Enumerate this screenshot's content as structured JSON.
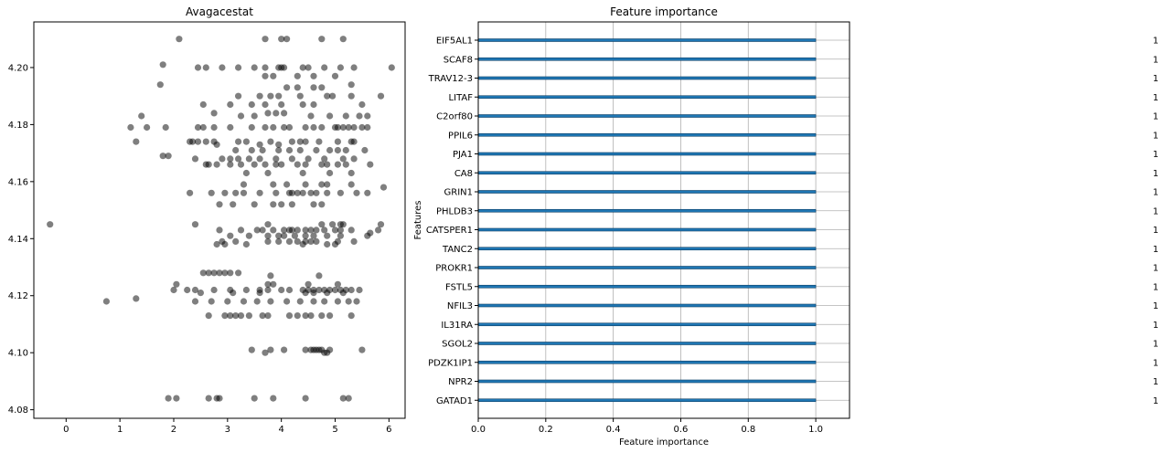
{
  "chart_data": [
    {
      "type": "scatter",
      "title": "Avagacestat",
      "xlabel": "",
      "ylabel": "",
      "xlim": [
        -0.6,
        6.3
      ],
      "ylim": [
        4.077,
        4.216
      ],
      "xticks": [
        "0",
        "1",
        "2",
        "3",
        "4",
        "5",
        "6"
      ],
      "yticks": [
        "4.08",
        "4.10",
        "4.12",
        "4.14",
        "4.16",
        "4.18",
        "4.20"
      ],
      "marker_color": "#000000",
      "marker_alpha": 0.5,
      "grid": false,
      "points": [
        [
          2.1,
          4.21
        ],
        [
          3.7,
          4.21
        ],
        [
          4.0,
          4.21
        ],
        [
          4.1,
          4.21
        ],
        [
          4.75,
          4.21
        ],
        [
          5.15,
          4.21
        ],
        [
          1.8,
          4.201
        ],
        [
          2.45,
          4.2
        ],
        [
          2.6,
          4.2
        ],
        [
          2.9,
          4.2
        ],
        [
          3.2,
          4.2
        ],
        [
          3.5,
          4.2
        ],
        [
          3.7,
          4.2
        ],
        [
          3.95,
          4.2
        ],
        [
          4.0,
          4.2
        ],
        [
          4.05,
          4.2
        ],
        [
          4.4,
          4.2
        ],
        [
          4.5,
          4.2
        ],
        [
          4.8,
          4.2
        ],
        [
          5.1,
          4.2
        ],
        [
          5.35,
          4.2
        ],
        [
          6.05,
          4.2
        ],
        [
          3.7,
          4.197
        ],
        [
          3.85,
          4.197
        ],
        [
          4.3,
          4.197
        ],
        [
          4.6,
          4.197
        ],
        [
          5.0,
          4.197
        ],
        [
          1.75,
          4.194
        ],
        [
          4.1,
          4.193
        ],
        [
          4.3,
          4.193
        ],
        [
          4.6,
          4.193
        ],
        [
          4.75,
          4.193
        ],
        [
          5.3,
          4.194
        ],
        [
          3.2,
          4.19
        ],
        [
          3.6,
          4.19
        ],
        [
          3.8,
          4.19
        ],
        [
          3.95,
          4.19
        ],
        [
          4.35,
          4.19
        ],
        [
          4.85,
          4.19
        ],
        [
          4.95,
          4.19
        ],
        [
          5.3,
          4.19
        ],
        [
          5.85,
          4.19
        ],
        [
          2.55,
          4.187
        ],
        [
          3.05,
          4.187
        ],
        [
          3.45,
          4.187
        ],
        [
          3.7,
          4.187
        ],
        [
          4.0,
          4.187
        ],
        [
          4.4,
          4.187
        ],
        [
          4.6,
          4.187
        ],
        [
          5.5,
          4.187
        ],
        [
          1.4,
          4.183
        ],
        [
          2.75,
          4.184
        ],
        [
          3.25,
          4.183
        ],
        [
          3.5,
          4.183
        ],
        [
          3.75,
          4.184
        ],
        [
          3.9,
          4.184
        ],
        [
          4.05,
          4.184
        ],
        [
          4.55,
          4.183
        ],
        [
          4.9,
          4.183
        ],
        [
          5.2,
          4.183
        ],
        [
          5.45,
          4.183
        ],
        [
          5.6,
          4.183
        ],
        [
          1.2,
          4.179
        ],
        [
          1.5,
          4.179
        ],
        [
          1.85,
          4.179
        ],
        [
          2.45,
          4.179
        ],
        [
          2.55,
          4.179
        ],
        [
          2.75,
          4.179
        ],
        [
          3.05,
          4.179
        ],
        [
          3.45,
          4.179
        ],
        [
          3.7,
          4.179
        ],
        [
          3.85,
          4.179
        ],
        [
          4.05,
          4.179
        ],
        [
          4.15,
          4.179
        ],
        [
          4.45,
          4.179
        ],
        [
          4.6,
          4.179
        ],
        [
          4.75,
          4.179
        ],
        [
          5.0,
          4.179
        ],
        [
          5.05,
          4.179
        ],
        [
          5.15,
          4.179
        ],
        [
          5.25,
          4.179
        ],
        [
          5.35,
          4.179
        ],
        [
          5.5,
          4.179
        ],
        [
          5.6,
          4.179
        ],
        [
          1.3,
          4.174
        ],
        [
          2.3,
          4.174
        ],
        [
          2.35,
          4.174
        ],
        [
          2.45,
          4.174
        ],
        [
          2.6,
          4.174
        ],
        [
          2.75,
          4.174
        ],
        [
          2.8,
          4.173
        ],
        [
          3.2,
          4.174
        ],
        [
          3.35,
          4.174
        ],
        [
          3.6,
          4.173
        ],
        [
          3.8,
          4.174
        ],
        [
          3.95,
          4.173
        ],
        [
          4.2,
          4.174
        ],
        [
          4.35,
          4.174
        ],
        [
          4.45,
          4.174
        ],
        [
          4.7,
          4.174
        ],
        [
          5.05,
          4.174
        ],
        [
          5.3,
          4.174
        ],
        [
          5.35,
          4.174
        ],
        [
          3.15,
          4.171
        ],
        [
          3.45,
          4.171
        ],
        [
          3.65,
          4.171
        ],
        [
          3.95,
          4.171
        ],
        [
          4.15,
          4.171
        ],
        [
          4.35,
          4.171
        ],
        [
          4.65,
          4.171
        ],
        [
          4.9,
          4.171
        ],
        [
          5.05,
          4.171
        ],
        [
          5.2,
          4.171
        ],
        [
          5.55,
          4.171
        ],
        [
          1.8,
          4.169
        ],
        [
          1.9,
          4.169
        ],
        [
          2.4,
          4.168
        ],
        [
          2.9,
          4.168
        ],
        [
          3.05,
          4.168
        ],
        [
          3.2,
          4.168
        ],
        [
          3.4,
          4.168
        ],
        [
          3.6,
          4.168
        ],
        [
          3.9,
          4.168
        ],
        [
          4.2,
          4.168
        ],
        [
          4.5,
          4.168
        ],
        [
          4.8,
          4.168
        ],
        [
          5.15,
          4.168
        ],
        [
          5.35,
          4.168
        ],
        [
          2.6,
          4.166
        ],
        [
          2.65,
          4.166
        ],
        [
          2.8,
          4.166
        ],
        [
          3.05,
          4.166
        ],
        [
          3.25,
          4.166
        ],
        [
          3.5,
          4.166
        ],
        [
          3.7,
          4.166
        ],
        [
          3.9,
          4.166
        ],
        [
          4.0,
          4.166
        ],
        [
          4.3,
          4.166
        ],
        [
          4.45,
          4.166
        ],
        [
          4.75,
          4.166
        ],
        [
          4.85,
          4.166
        ],
        [
          5.05,
          4.166
        ],
        [
          5.2,
          4.166
        ],
        [
          5.65,
          4.166
        ],
        [
          3.35,
          4.163
        ],
        [
          3.75,
          4.163
        ],
        [
          4.4,
          4.163
        ],
        [
          4.9,
          4.163
        ],
        [
          5.3,
          4.163
        ],
        [
          3.3,
          4.159
        ],
        [
          3.85,
          4.159
        ],
        [
          4.1,
          4.159
        ],
        [
          4.45,
          4.159
        ],
        [
          4.75,
          4.159
        ],
        [
          4.85,
          4.159
        ],
        [
          5.3,
          4.159
        ],
        [
          5.9,
          4.158
        ],
        [
          2.3,
          4.156
        ],
        [
          2.7,
          4.156
        ],
        [
          2.95,
          4.156
        ],
        [
          3.15,
          4.156
        ],
        [
          3.3,
          4.156
        ],
        [
          3.6,
          4.156
        ],
        [
          3.9,
          4.156
        ],
        [
          4.15,
          4.156
        ],
        [
          4.2,
          4.156
        ],
        [
          4.3,
          4.156
        ],
        [
          4.4,
          4.156
        ],
        [
          4.55,
          4.156
        ],
        [
          4.65,
          4.156
        ],
        [
          4.85,
          4.156
        ],
        [
          5.1,
          4.156
        ],
        [
          5.4,
          4.156
        ],
        [
          5.6,
          4.156
        ],
        [
          2.85,
          4.152
        ],
        [
          3.1,
          4.152
        ],
        [
          3.5,
          4.152
        ],
        [
          3.85,
          4.152
        ],
        [
          4.0,
          4.152
        ],
        [
          4.2,
          4.152
        ],
        [
          4.6,
          4.152
        ],
        [
          4.75,
          4.152
        ],
        [
          -0.3,
          4.145
        ],
        [
          2.4,
          4.145
        ],
        [
          3.75,
          4.145
        ],
        [
          4.75,
          4.145
        ],
        [
          4.95,
          4.145
        ],
        [
          5.1,
          4.145
        ],
        [
          5.15,
          4.145
        ],
        [
          5.85,
          4.145
        ],
        [
          2.85,
          4.143
        ],
        [
          3.25,
          4.143
        ],
        [
          3.55,
          4.143
        ],
        [
          3.65,
          4.143
        ],
        [
          3.85,
          4.143
        ],
        [
          4.05,
          4.143
        ],
        [
          4.15,
          4.143
        ],
        [
          4.2,
          4.143
        ],
        [
          4.3,
          4.143
        ],
        [
          4.45,
          4.143
        ],
        [
          4.55,
          4.143
        ],
        [
          4.65,
          4.143
        ],
        [
          4.8,
          4.143
        ],
        [
          5.0,
          4.143
        ],
        [
          5.1,
          4.143
        ],
        [
          5.3,
          4.143
        ],
        [
          5.8,
          4.143
        ],
        [
          3.05,
          4.141
        ],
        [
          3.4,
          4.141
        ],
        [
          3.75,
          4.141
        ],
        [
          3.95,
          4.141
        ],
        [
          4.05,
          4.141
        ],
        [
          4.25,
          4.141
        ],
        [
          4.45,
          4.141
        ],
        [
          4.6,
          4.141
        ],
        [
          4.85,
          4.141
        ],
        [
          5.1,
          4.141
        ],
        [
          5.6,
          4.141
        ],
        [
          5.65,
          4.142
        ],
        [
          2.9,
          4.139
        ],
        [
          3.15,
          4.139
        ],
        [
          3.75,
          4.139
        ],
        [
          3.95,
          4.139
        ],
        [
          4.15,
          4.139
        ],
        [
          4.3,
          4.139
        ],
        [
          4.45,
          4.139
        ],
        [
          4.55,
          4.139
        ],
        [
          4.65,
          4.139
        ],
        [
          5.05,
          4.139
        ],
        [
          5.35,
          4.139
        ],
        [
          2.8,
          4.138
        ],
        [
          2.95,
          4.138
        ],
        [
          3.35,
          4.138
        ],
        [
          4.4,
          4.138
        ],
        [
          4.85,
          4.138
        ],
        [
          5.0,
          4.138
        ],
        [
          2.65,
          4.128
        ],
        [
          2.75,
          4.128
        ],
        [
          2.85,
          4.128
        ],
        [
          2.95,
          4.128
        ],
        [
          3.05,
          4.128
        ],
        [
          3.2,
          4.128
        ],
        [
          2.55,
          4.128
        ],
        [
          3.8,
          4.127
        ],
        [
          4.7,
          4.127
        ],
        [
          2.05,
          4.124
        ],
        [
          3.75,
          4.124
        ],
        [
          3.85,
          4.124
        ],
        [
          4.5,
          4.124
        ],
        [
          5.05,
          4.124
        ],
        [
          2.0,
          4.122
        ],
        [
          2.4,
          4.122
        ],
        [
          2.75,
          4.122
        ],
        [
          3.05,
          4.122
        ],
        [
          3.35,
          4.122
        ],
        [
          3.6,
          4.122
        ],
        [
          3.75,
          4.122
        ],
        [
          4.0,
          4.122
        ],
        [
          4.15,
          4.122
        ],
        [
          4.4,
          4.122
        ],
        [
          4.5,
          4.122
        ],
        [
          4.6,
          4.122
        ],
        [
          4.7,
          4.122
        ],
        [
          4.8,
          4.122
        ],
        [
          4.9,
          4.122
        ],
        [
          5.0,
          4.122
        ],
        [
          5.1,
          4.122
        ],
        [
          5.2,
          4.122
        ],
        [
          5.3,
          4.122
        ],
        [
          5.45,
          4.122
        ],
        [
          2.25,
          4.122
        ],
        [
          2.5,
          4.121
        ],
        [
          3.1,
          4.121
        ],
        [
          3.6,
          4.121
        ],
        [
          4.45,
          4.121
        ],
        [
          4.6,
          4.121
        ],
        [
          4.85,
          4.121
        ],
        [
          5.15,
          4.121
        ],
        [
          0.75,
          4.118
        ],
        [
          1.3,
          4.119
        ],
        [
          2.4,
          4.118
        ],
        [
          2.7,
          4.118
        ],
        [
          3.0,
          4.118
        ],
        [
          3.3,
          4.118
        ],
        [
          3.55,
          4.118
        ],
        [
          3.8,
          4.118
        ],
        [
          4.1,
          4.118
        ],
        [
          4.35,
          4.118
        ],
        [
          4.6,
          4.118
        ],
        [
          4.8,
          4.118
        ],
        [
          5.05,
          4.118
        ],
        [
          5.25,
          4.118
        ],
        [
          5.4,
          4.118
        ],
        [
          2.65,
          4.113
        ],
        [
          2.95,
          4.113
        ],
        [
          3.05,
          4.113
        ],
        [
          3.15,
          4.113
        ],
        [
          3.25,
          4.113
        ],
        [
          3.4,
          4.113
        ],
        [
          3.65,
          4.113
        ],
        [
          3.75,
          4.113
        ],
        [
          4.15,
          4.113
        ],
        [
          4.3,
          4.113
        ],
        [
          4.45,
          4.113
        ],
        [
          4.55,
          4.113
        ],
        [
          4.75,
          4.113
        ],
        [
          4.9,
          4.113
        ],
        [
          5.3,
          4.113
        ],
        [
          3.45,
          4.101
        ],
        [
          3.7,
          4.1
        ],
        [
          3.8,
          4.101
        ],
        [
          4.05,
          4.101
        ],
        [
          4.45,
          4.101
        ],
        [
          4.55,
          4.101
        ],
        [
          4.6,
          4.101
        ],
        [
          4.65,
          4.101
        ],
        [
          4.7,
          4.101
        ],
        [
          4.75,
          4.101
        ],
        [
          4.8,
          4.1
        ],
        [
          4.85,
          4.1
        ],
        [
          4.9,
          4.101
        ],
        [
          5.5,
          4.101
        ],
        [
          1.9,
          4.084
        ],
        [
          2.05,
          4.084
        ],
        [
          2.65,
          4.084
        ],
        [
          2.8,
          4.084
        ],
        [
          2.85,
          4.084
        ],
        [
          3.5,
          4.084
        ],
        [
          3.85,
          4.084
        ],
        [
          4.45,
          4.084
        ],
        [
          5.15,
          4.084
        ],
        [
          5.25,
          4.084
        ]
      ]
    },
    {
      "type": "bar",
      "orientation": "horizontal",
      "title": "Feature importance",
      "xlabel": "Feature importance",
      "ylabel": "Features",
      "xlim": [
        0,
        1.1
      ],
      "xticks": [
        "0.0",
        "0.2",
        "0.4",
        "0.6",
        "0.8",
        "1.0"
      ],
      "grid": true,
      "bar_color": "#1f77b4",
      "categories": [
        "EIF5AL1",
        "SCAF8",
        "TRAV12-3",
        "LITAF",
        "C2orf80",
        "PPIL6",
        "PJA1",
        "CA8",
        "GRIN1",
        "PHLDB3",
        "CATSPER1",
        "TANC2",
        "PROKR1",
        "FSTL5",
        "NFIL3",
        "IL31RA",
        "SGOL2",
        "PDZK1IP1",
        "NPR2",
        "GATAD1"
      ],
      "values": [
        1,
        1,
        1,
        1,
        1,
        1,
        1,
        1,
        1,
        1,
        1,
        1,
        1,
        1,
        1,
        1,
        1,
        1,
        1,
        1
      ],
      "value_labels": [
        "1",
        "1",
        "1",
        "1",
        "1",
        "1",
        "1",
        "1",
        "1",
        "1",
        "1",
        "1",
        "1",
        "1",
        "1",
        "1",
        "1",
        "1",
        "1",
        "1"
      ]
    }
  ]
}
